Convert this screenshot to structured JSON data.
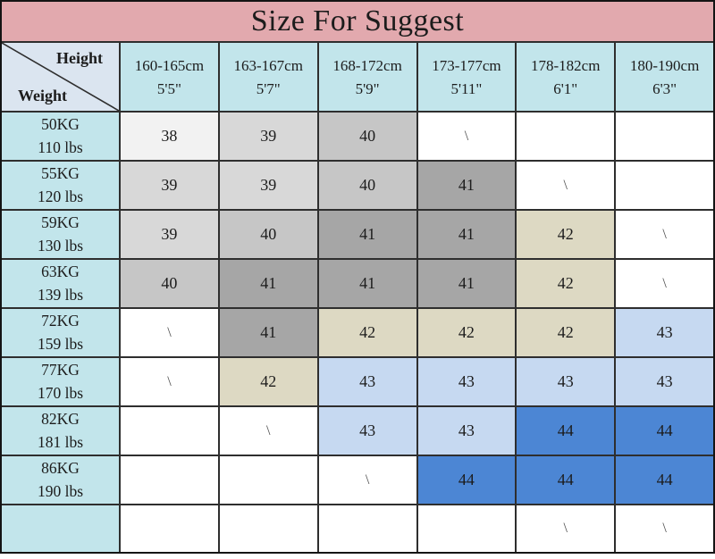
{
  "title": "Size For Suggest",
  "corner": {
    "top": "Height",
    "bottom": "Weight"
  },
  "palette": {
    "title_bg": "#e2a9ae",
    "header_bg": "#c2e5eb",
    "label_bg": "#c2e5eb",
    "corner_bg": "#dbe5f0",
    "white": "#ffffff",
    "g38": "#f2f2f2",
    "g39": "#d8d8d8",
    "g40": "#c6c6c6",
    "g41": "#a6a6a6",
    "tan42": "#ddd9c3",
    "blue43": "#c6d9f1",
    "blue44": "#4c86d4"
  },
  "columns": [
    {
      "range": "160-165cm",
      "feet": "5'5\""
    },
    {
      "range": "163-167cm",
      "feet": "5'7\""
    },
    {
      "range": "168-172cm",
      "feet": "5'9\""
    },
    {
      "range": "173-177cm",
      "feet": "5'11\""
    },
    {
      "range": "178-182cm",
      "feet": "6'1\""
    },
    {
      "range": "180-190cm",
      "feet": "6'3\""
    }
  ],
  "rows": [
    {
      "kg": "50KG",
      "lbs": "110 lbs",
      "cells": [
        {
          "v": "38",
          "tone": "g38"
        },
        {
          "v": "39",
          "tone": "g39"
        },
        {
          "v": "40",
          "tone": "g40"
        },
        {
          "v": "\\",
          "tone": "white"
        },
        {
          "v": "",
          "tone": "white"
        },
        {
          "v": "",
          "tone": "white"
        }
      ]
    },
    {
      "kg": "55KG",
      "lbs": "120 lbs",
      "cells": [
        {
          "v": "39",
          "tone": "g39"
        },
        {
          "v": "39",
          "tone": "g39"
        },
        {
          "v": "40",
          "tone": "g40"
        },
        {
          "v": "41",
          "tone": "g41"
        },
        {
          "v": "\\",
          "tone": "white"
        },
        {
          "v": "",
          "tone": "white"
        }
      ]
    },
    {
      "kg": "59KG",
      "lbs": "130 lbs",
      "cells": [
        {
          "v": "39",
          "tone": "g39"
        },
        {
          "v": "40",
          "tone": "g40"
        },
        {
          "v": "41",
          "tone": "g41"
        },
        {
          "v": "41",
          "tone": "g41"
        },
        {
          "v": "42",
          "tone": "tan42"
        },
        {
          "v": "\\",
          "tone": "white"
        }
      ]
    },
    {
      "kg": "63KG",
      "lbs": "139 lbs",
      "cells": [
        {
          "v": "40",
          "tone": "g40"
        },
        {
          "v": "41",
          "tone": "g41"
        },
        {
          "v": "41",
          "tone": "g41"
        },
        {
          "v": "41",
          "tone": "g41"
        },
        {
          "v": "42",
          "tone": "tan42"
        },
        {
          "v": "\\",
          "tone": "white"
        }
      ]
    },
    {
      "kg": "72KG",
      "lbs": "159 lbs",
      "cells": [
        {
          "v": "\\",
          "tone": "white"
        },
        {
          "v": "41",
          "tone": "g41"
        },
        {
          "v": "42",
          "tone": "tan42"
        },
        {
          "v": "42",
          "tone": "tan42"
        },
        {
          "v": "42",
          "tone": "tan42"
        },
        {
          "v": "43",
          "tone": "blue43"
        }
      ]
    },
    {
      "kg": "77KG",
      "lbs": "170 lbs",
      "cells": [
        {
          "v": "\\",
          "tone": "white"
        },
        {
          "v": "42",
          "tone": "tan42"
        },
        {
          "v": "43",
          "tone": "blue43"
        },
        {
          "v": "43",
          "tone": "blue43"
        },
        {
          "v": "43",
          "tone": "blue43"
        },
        {
          "v": "43",
          "tone": "blue43"
        }
      ]
    },
    {
      "kg": "82KG",
      "lbs": "181 lbs",
      "cells": [
        {
          "v": "",
          "tone": "white"
        },
        {
          "v": "\\",
          "tone": "white"
        },
        {
          "v": "43",
          "tone": "blue43"
        },
        {
          "v": "43",
          "tone": "blue43"
        },
        {
          "v": "44",
          "tone": "blue44"
        },
        {
          "v": "44",
          "tone": "blue44"
        }
      ]
    },
    {
      "kg": "86KG",
      "lbs": "190 lbs",
      "cells": [
        {
          "v": "",
          "tone": "white"
        },
        {
          "v": "",
          "tone": "white"
        },
        {
          "v": "\\",
          "tone": "white"
        },
        {
          "v": "44",
          "tone": "blue44"
        },
        {
          "v": "44",
          "tone": "blue44"
        },
        {
          "v": "44",
          "tone": "blue44"
        }
      ]
    },
    {
      "kg": "",
      "lbs": "",
      "cells": [
        {
          "v": "",
          "tone": "white"
        },
        {
          "v": "",
          "tone": "white"
        },
        {
          "v": "",
          "tone": "white"
        },
        {
          "v": "",
          "tone": "white"
        },
        {
          "v": "\\",
          "tone": "white"
        },
        {
          "v": "\\",
          "tone": "white"
        }
      ]
    }
  ],
  "chart_data": {
    "type": "table",
    "title": "Size For Suggest",
    "corner_labels": [
      "Height",
      "Weight"
    ],
    "columns": [
      "160-165cm 5'5\"",
      "163-167cm 5'7\"",
      "168-172cm 5'9\"",
      "173-177cm 5'11\"",
      "178-182cm 6'1\"",
      "180-190cm 6'3\""
    ],
    "rows": [
      "50KG 110 lbs",
      "55KG 120 lbs",
      "59KG 130 lbs",
      "63KG 139 lbs",
      "72KG 159 lbs",
      "77KG 170 lbs",
      "82KG 181 lbs",
      "86KG 190 lbs",
      ""
    ],
    "values": [
      [
        "38",
        "39",
        "40",
        "\\",
        "",
        ""
      ],
      [
        "39",
        "39",
        "40",
        "41",
        "\\",
        ""
      ],
      [
        "39",
        "40",
        "41",
        "41",
        "42",
        "\\"
      ],
      [
        "40",
        "41",
        "41",
        "41",
        "42",
        "\\"
      ],
      [
        "\\",
        "41",
        "42",
        "42",
        "42",
        "43"
      ],
      [
        "\\",
        "42",
        "43",
        "43",
        "43",
        "43"
      ],
      [
        "",
        "\\",
        "43",
        "43",
        "44",
        "44"
      ],
      [
        "",
        "",
        "\\",
        "44",
        "44",
        "44"
      ],
      [
        "",
        "",
        "",
        "",
        "\\",
        "\\"
      ]
    ]
  }
}
